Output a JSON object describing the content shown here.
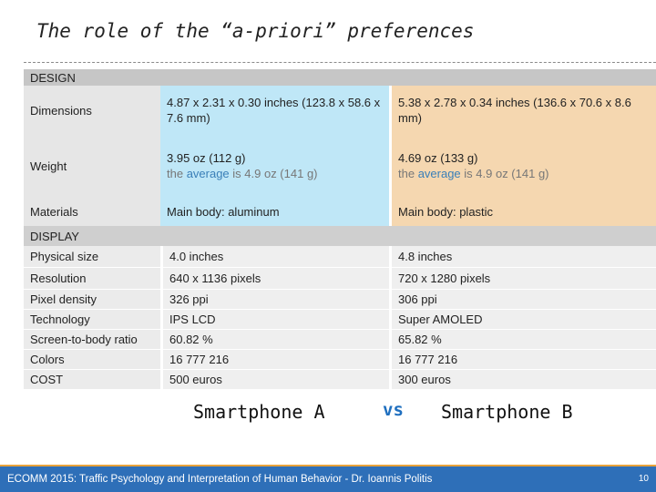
{
  "title": "The role of the “a-priori” preferences",
  "design": {
    "header": "DESIGN",
    "rows": [
      {
        "label": "Dimensions",
        "a": "4.87 x 2.31 x 0.30 inches (123.8 x 58.6 x 7.6 mm)",
        "b": "5.38 x 2.78 x 0.34 inches (136.6 x 70.6 x 8.6 mm)"
      },
      {
        "label": "Weight",
        "a": "3.95 oz (112 g)",
        "b": "4.69 oz (133 g)"
      },
      {
        "label": "Materials",
        "a": "Main body: aluminum",
        "b": "Main body: plastic"
      }
    ],
    "weight_note": {
      "pre": "the ",
      "avg": "average",
      "post": " is 4.9 oz (141 g)"
    }
  },
  "display": {
    "header": "DISPLAY",
    "rows": [
      {
        "label": "Physical size",
        "a": "4.0 inches",
        "b": "4.8 inches"
      },
      {
        "label": "Resolution",
        "a": "640 x 1136 pixels",
        "b": "720 x 1280 pixels"
      },
      {
        "label": "Pixel density",
        "a": "326 ppi",
        "b": "306 ppi"
      },
      {
        "label": "Technology",
        "a": "IPS LCD",
        "b": "Super AMOLED"
      },
      {
        "label": "Screen-to-body ratio",
        "a": "60.82 %",
        "b": "65.82 %"
      },
      {
        "label": "Colors",
        "a": "16 777 216",
        "b": "16 777 216"
      },
      {
        "label": "COST",
        "a": "500 euros",
        "b": "300 euros"
      }
    ]
  },
  "labels": {
    "a": "Smartphone A",
    "vs": "vs",
    "b": "Smartphone B"
  },
  "footer": {
    "text": "ECOMM 2015: Traffic Psychology and Interpretation of Human Behavior  - Dr. Ioannis Politis",
    "page": "10"
  },
  "colors": {
    "phone_a": "#bfe7f7",
    "phone_b": "#f5d7b0",
    "footer_bg": "#2e6fb8",
    "footer_accent": "#e8a23a",
    "vs": "#1f6fbf"
  }
}
